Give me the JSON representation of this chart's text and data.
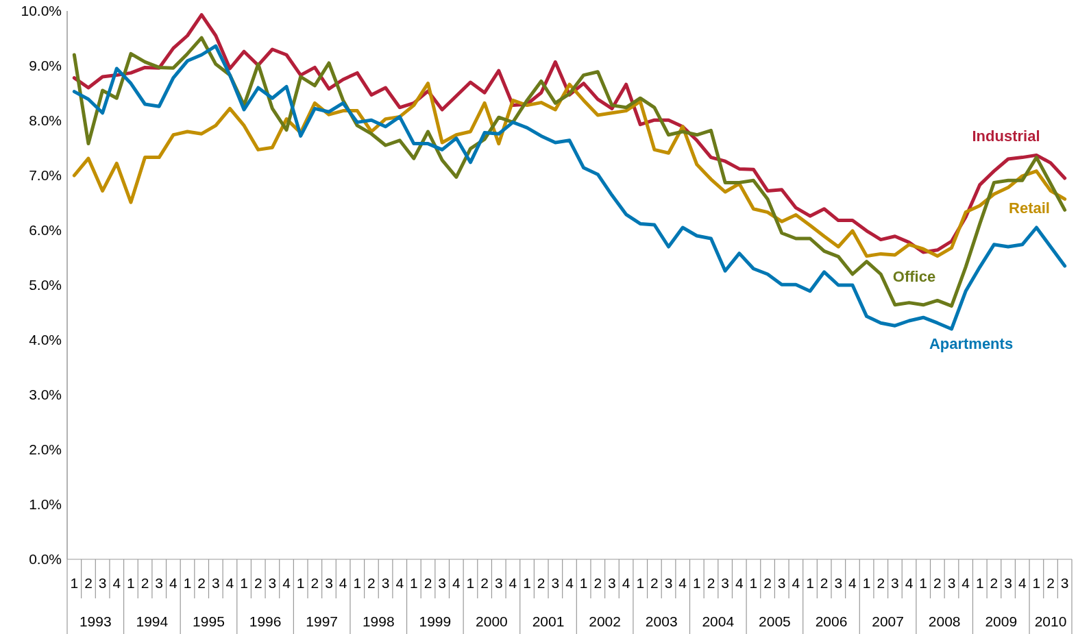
{
  "chart_data": {
    "type": "line",
    "categories": [
      "1",
      "2",
      "3",
      "4",
      "1",
      "2",
      "3",
      "4",
      "1",
      "2",
      "3",
      "4",
      "1",
      "2",
      "3",
      "4",
      "1",
      "2",
      "3",
      "4",
      "1",
      "2",
      "3",
      "4",
      "1",
      "2",
      "3",
      "4",
      "1",
      "2",
      "3",
      "4",
      "1",
      "2",
      "3",
      "4",
      "1",
      "2",
      "3",
      "4",
      "1",
      "2",
      "3",
      "4",
      "1",
      "2",
      "3",
      "4",
      "1",
      "2",
      "3",
      "4",
      "1",
      "2",
      "3",
      "4",
      "1",
      "2",
      "3",
      "4",
      "1",
      "2",
      "3",
      "4",
      "1",
      "2",
      "3",
      "4",
      "1",
      "2",
      "3"
    ],
    "annotations": [
      "1993",
      "1994",
      "1995",
      "1996",
      "1997",
      "1998",
      "1999",
      "2000",
      "2001",
      "2002",
      "2003",
      "2004",
      "2005",
      "2006",
      "2007",
      "2008",
      "2009",
      "2010"
    ],
    "ylim": [
      0,
      10
    ],
    "yticks": [
      {
        "value": 0,
        "label": "0.0%"
      },
      {
        "value": 1,
        "label": "1.0%"
      },
      {
        "value": 2,
        "label": "2.0%"
      },
      {
        "value": 3,
        "label": "3.0%"
      },
      {
        "value": 4,
        "label": "4.0%"
      },
      {
        "value": 5,
        "label": "5.0%"
      },
      {
        "value": 6,
        "label": "6.0%"
      },
      {
        "value": 7,
        "label": "7.0%"
      },
      {
        "value": 8,
        "label": "8.0%"
      },
      {
        "value": 9,
        "label": "9.0%"
      },
      {
        "value": 10,
        "label": "10.0%"
      }
    ],
    "grid": false,
    "legend": false,
    "marker": "none",
    "line_style": "solid",
    "series": [
      {
        "name": "Industrial",
        "color": "#b41f3a",
        "values": [
          8.78,
          8.6,
          8.8,
          8.83,
          8.87,
          8.97,
          8.96,
          9.32,
          9.55,
          9.93,
          9.55,
          8.95,
          9.26,
          9.01,
          9.3,
          9.2,
          8.83,
          8.97,
          8.58,
          8.75,
          8.87,
          8.47,
          8.6,
          8.24,
          8.32,
          8.54,
          8.2,
          8.45,
          8.7,
          8.51,
          8.91,
          8.28,
          8.3,
          8.51,
          9.07,
          8.47,
          8.68,
          8.39,
          8.22,
          8.66,
          7.93,
          8.01,
          8.01,
          7.89,
          7.64,
          7.33,
          7.26,
          7.12,
          7.11,
          6.72,
          6.74,
          6.41,
          6.26,
          6.39,
          6.18,
          6.18,
          5.99,
          5.83,
          5.89,
          5.78,
          5.6,
          5.64,
          5.8,
          6.24,
          6.83,
          7.08,
          7.3,
          7.33,
          7.37,
          7.23,
          6.95
        ]
      },
      {
        "name": "Retail",
        "color": "#c28f00",
        "values": [
          7.0,
          7.31,
          6.72,
          7.22,
          6.51,
          7.33,
          7.33,
          7.74,
          7.8,
          7.76,
          7.91,
          8.22,
          7.91,
          7.47,
          7.51,
          8.03,
          7.78,
          8.32,
          8.11,
          8.18,
          8.18,
          7.8,
          8.03,
          8.07,
          8.28,
          8.68,
          7.6,
          7.74,
          7.8,
          8.32,
          7.58,
          8.37,
          8.28,
          8.33,
          8.2,
          8.66,
          8.37,
          8.1,
          8.14,
          8.18,
          8.35,
          7.47,
          7.41,
          7.89,
          7.2,
          6.93,
          6.7,
          6.85,
          6.39,
          6.33,
          6.16,
          6.28,
          6.09,
          5.89,
          5.7,
          5.99,
          5.53,
          5.57,
          5.55,
          5.74,
          5.66,
          5.53,
          5.68,
          6.33,
          6.45,
          6.66,
          6.78,
          6.99,
          7.08,
          6.72,
          6.57
        ]
      },
      {
        "name": "Office",
        "color": "#6b7a1a",
        "values": [
          9.2,
          7.58,
          8.55,
          8.41,
          9.22,
          9.07,
          8.97,
          8.96,
          9.22,
          9.51,
          9.03,
          8.83,
          8.28,
          9.03,
          8.22,
          7.83,
          8.8,
          8.64,
          9.05,
          8.37,
          7.91,
          7.76,
          7.55,
          7.64,
          7.31,
          7.8,
          7.28,
          6.97,
          7.49,
          7.66,
          8.06,
          7.97,
          8.37,
          8.72,
          8.32,
          8.49,
          8.83,
          8.89,
          8.28,
          8.24,
          8.41,
          8.24,
          7.74,
          7.8,
          7.74,
          7.82,
          6.87,
          6.87,
          6.91,
          6.57,
          5.95,
          5.85,
          5.85,
          5.62,
          5.52,
          5.2,
          5.43,
          5.2,
          4.64,
          4.68,
          4.64,
          4.72,
          4.62,
          5.33,
          6.12,
          6.87,
          6.91,
          6.91,
          7.33,
          6.85,
          6.37
        ]
      },
      {
        "name": "Apartments",
        "color": "#0077b3",
        "values": [
          8.53,
          8.39,
          8.14,
          8.95,
          8.68,
          8.3,
          8.26,
          8.78,
          9.09,
          9.2,
          9.36,
          8.83,
          8.2,
          8.6,
          8.41,
          8.62,
          7.72,
          8.22,
          8.16,
          8.32,
          7.97,
          8.01,
          7.89,
          8.07,
          7.58,
          7.58,
          7.47,
          7.68,
          7.24,
          7.78,
          7.76,
          7.97,
          7.87,
          7.72,
          7.6,
          7.64,
          7.14,
          7.02,
          6.64,
          6.29,
          6.12,
          6.1,
          5.7,
          6.05,
          5.9,
          5.85,
          5.26,
          5.58,
          5.3,
          5.2,
          5.01,
          5.01,
          4.89,
          5.24,
          5.0,
          5.0,
          4.43,
          4.31,
          4.26,
          4.35,
          4.41,
          4.31,
          4.2,
          4.89,
          5.33,
          5.74,
          5.7,
          5.74,
          6.05,
          5.7,
          5.35
        ]
      }
    ]
  }
}
